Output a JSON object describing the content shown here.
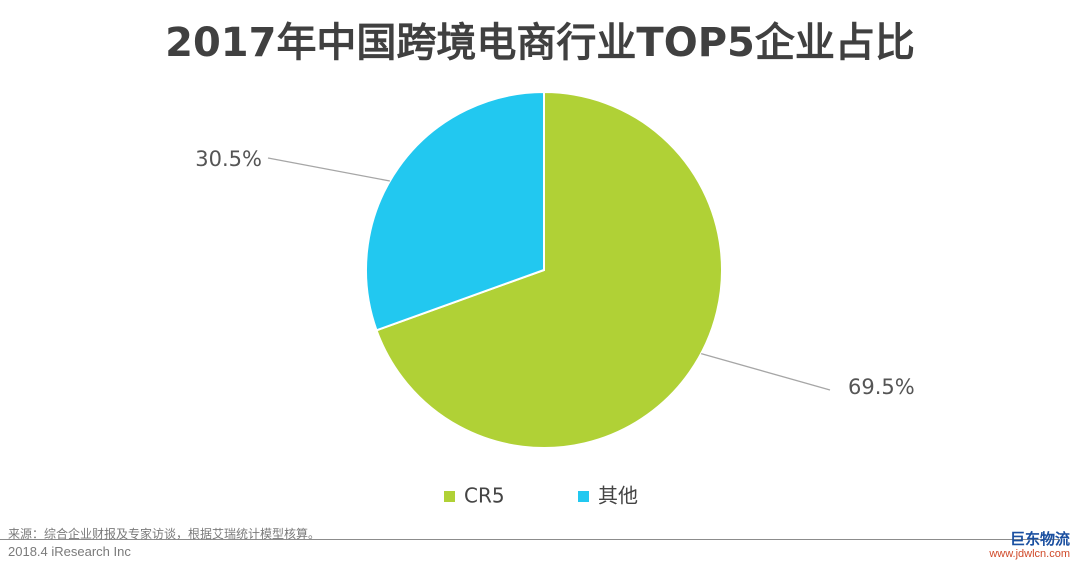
{
  "title": "2017年中国跨境电商行业TOP5企业占比",
  "chart_data": {
    "type": "pie",
    "title": "2017年中国跨境电商行业TOP5企业占比",
    "slices": [
      {
        "name": "CR5",
        "value": 69.5,
        "label": "69.5%",
        "color": "#b0d136"
      },
      {
        "name": "其他",
        "value": 30.5,
        "label": "30.5%",
        "color": "#22c8f0"
      }
    ],
    "start_angle_deg": 0,
    "direction": "clockwise",
    "legend_position": "bottom"
  },
  "footer": {
    "source": "来源：综合企业财报及专家访谈，根据艾瑞统计模型核算。",
    "copyright": "2018.4 iResearch Inc"
  },
  "watermark": {
    "name": "巨东物流",
    "url": "www.jdwlcn.com"
  }
}
